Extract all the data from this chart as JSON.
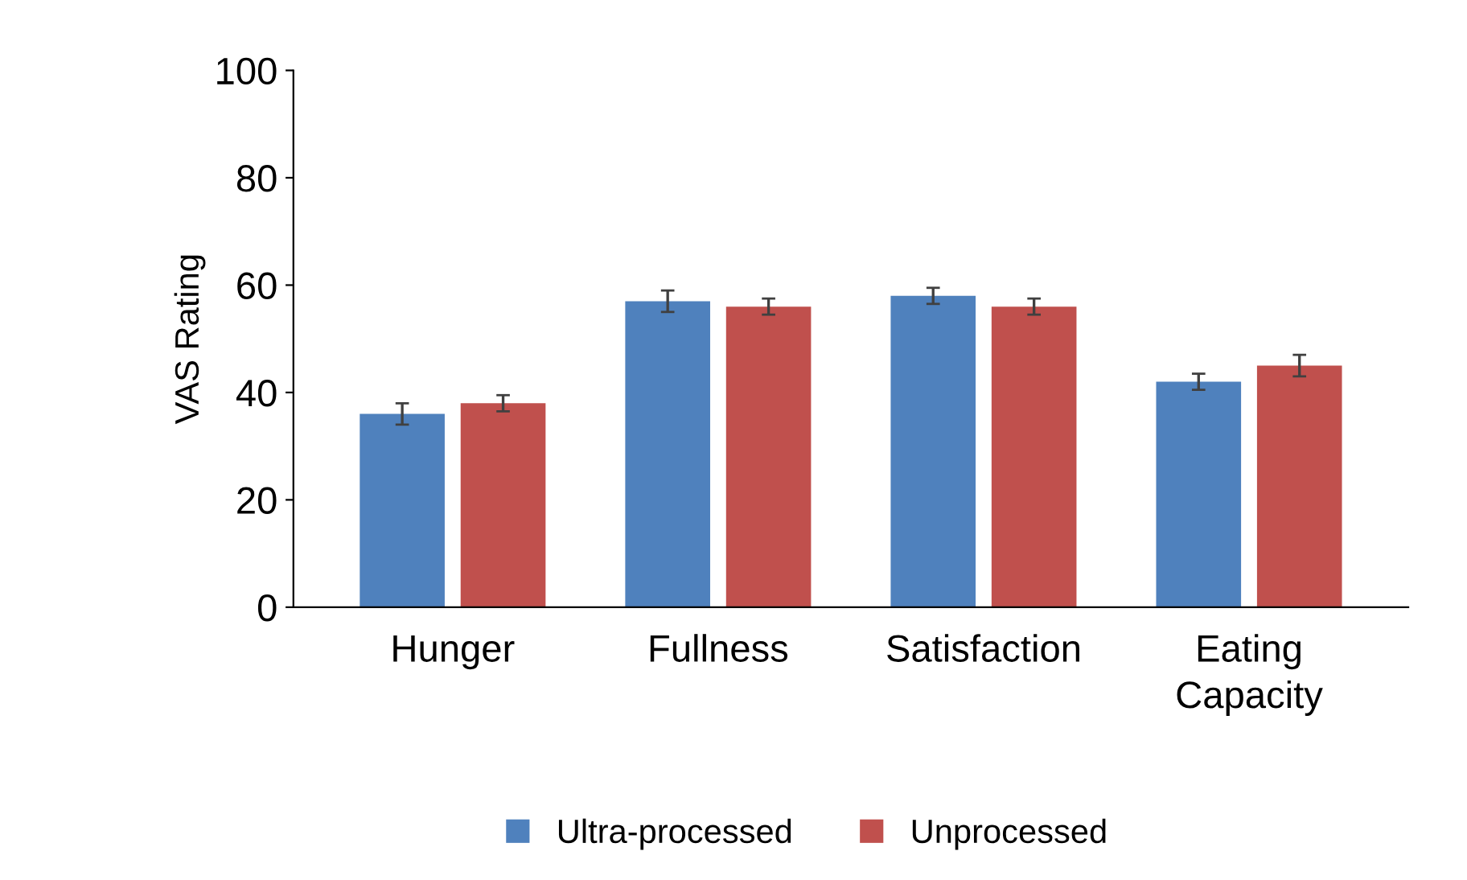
{
  "chart_data": {
    "type": "bar",
    "ylabel": "VAS Rating",
    "categories": [
      "Hunger",
      "Fullness",
      "Satisfaction",
      "Eating\nCapacity"
    ],
    "series": [
      {
        "name": "Ultra-processed",
        "color": "#4f81bd",
        "values": [
          36,
          57,
          58,
          42
        ],
        "errors": [
          2,
          2,
          1.5,
          1.5
        ]
      },
      {
        "name": "Unprocessed",
        "color": "#c0504d",
        "values": [
          38,
          56,
          56,
          45
        ],
        "errors": [
          1.5,
          1.5,
          1.5,
          2
        ]
      }
    ],
    "ylim": [
      0,
      100
    ],
    "yticks": [
      0,
      20,
      40,
      60,
      80,
      100
    ],
    "grid": false,
    "legend": "bottom"
  }
}
